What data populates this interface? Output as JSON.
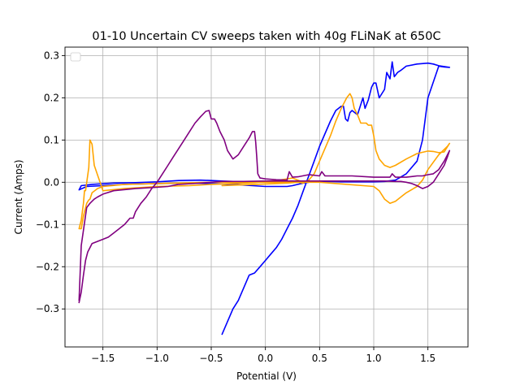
{
  "chart_data": {
    "type": "line",
    "title": "01-10 Uncertain CV sweeps taken with 40g FLiNaK at 650C",
    "xlabel": "Potential (V)",
    "ylabel": "Current (Amps)",
    "xlim": [
      -1.85,
      1.87
    ],
    "ylim": [
      -0.39,
      0.32
    ],
    "xticks": [
      -1.5,
      -1.0,
      -0.5,
      0.0,
      0.5,
      1.0,
      1.5
    ],
    "xtick_labels": [
      "−1.5",
      "−1.0",
      "−0.5",
      "0.0",
      "0.5",
      "1.0",
      "1.5"
    ],
    "yticks": [
      -0.3,
      -0.2,
      -0.1,
      0.0,
      0.1,
      0.2,
      0.3
    ],
    "ytick_labels": [
      "−0.3",
      "−0.2",
      "−0.1",
      "0.0",
      "0.1",
      "0.2",
      "0.3"
    ],
    "grid": true,
    "legend": "top-left (empty)",
    "series": [
      {
        "color": "#0000ff",
        "x": [
          -0.4,
          -0.35,
          -0.3,
          -0.25,
          -0.2,
          -0.15,
          -0.1,
          -0.05,
          0.0,
          0.05,
          0.1,
          0.15,
          0.2,
          0.25,
          0.3,
          0.35,
          0.4,
          0.45,
          0.5,
          0.55,
          0.6,
          0.65,
          0.7,
          0.72,
          0.74,
          0.76,
          0.78,
          0.8,
          0.85,
          0.9,
          0.92,
          0.95,
          0.98,
          1.0,
          1.02,
          1.05,
          1.1,
          1.12,
          1.15,
          1.17,
          1.19,
          1.22,
          1.25,
          1.3,
          1.4,
          1.5,
          1.55,
          1.6,
          1.7,
          1.65,
          1.6,
          1.5,
          1.45,
          1.4,
          1.3,
          1.2,
          1.1,
          1.0,
          0.9,
          0.8,
          0.7,
          0.6,
          0.5,
          0.45,
          0.4,
          0.3,
          0.2,
          0.1,
          0.0,
          -0.1,
          -0.2,
          -0.3,
          -0.4,
          -0.5,
          -0.6,
          -0.8,
          -1.0,
          -1.2,
          -1.4,
          -1.6,
          -1.7,
          -1.72,
          -1.65,
          -1.5,
          -1.3,
          -1.0,
          -0.7,
          -0.5,
          -0.3,
          0.0,
          0.1,
          0.2,
          0.25,
          0.3,
          0.35,
          0.4
        ],
        "y": [
          -0.36,
          -0.33,
          -0.3,
          -0.28,
          -0.25,
          -0.22,
          -0.215,
          -0.2,
          -0.185,
          -0.17,
          -0.155,
          -0.135,
          -0.11,
          -0.085,
          -0.055,
          -0.02,
          0.015,
          0.05,
          0.085,
          0.115,
          0.145,
          0.17,
          0.18,
          0.18,
          0.15,
          0.145,
          0.165,
          0.17,
          0.16,
          0.2,
          0.175,
          0.195,
          0.225,
          0.235,
          0.235,
          0.2,
          0.22,
          0.26,
          0.245,
          0.285,
          0.25,
          0.26,
          0.265,
          0.275,
          0.28,
          0.282,
          0.28,
          0.276,
          0.272,
          0.273,
          0.275,
          0.2,
          0.1,
          0.05,
          0.02,
          0.005,
          0.002,
          0.001,
          0.001,
          0.001,
          0.001,
          0.002,
          0.002,
          0.003,
          0.003,
          0.003,
          0.003,
          0.002,
          0.002,
          0.002,
          0.002,
          0.002,
          0.003,
          0.004,
          0.005,
          0.004,
          0.001,
          -0.001,
          -0.002,
          -0.005,
          -0.008,
          -0.018,
          -0.01,
          -0.008,
          -0.005,
          -0.003,
          -0.002,
          -0.003,
          -0.005,
          -0.01,
          -0.01,
          -0.01,
          -0.008,
          -0.005,
          -0.002,
          0.0
        ]
      },
      {
        "color": "#ffa500",
        "x": [
          -0.4,
          -0.2,
          0.0,
          0.2,
          0.3,
          0.35,
          0.4,
          0.45,
          0.5,
          0.55,
          0.6,
          0.65,
          0.7,
          0.75,
          0.78,
          0.8,
          0.82,
          0.85,
          0.88,
          0.9,
          0.93,
          0.95,
          0.98,
          1.0,
          1.02,
          1.05,
          1.1,
          1.15,
          1.2,
          1.3,
          1.4,
          1.5,
          1.55,
          1.6,
          1.65,
          1.7,
          1.68,
          1.6,
          1.5,
          1.45,
          1.4,
          1.3,
          1.25,
          1.2,
          1.15,
          1.1,
          1.05,
          1.0,
          0.5,
          0.0,
          -0.5,
          -1.0,
          -1.3,
          -1.5,
          -1.55,
          -1.6,
          -1.62,
          -1.63,
          -1.65,
          -1.68,
          -1.7,
          -1.72,
          -1.7,
          -1.68,
          -1.67,
          -1.66,
          -1.63,
          -1.62,
          -1.6,
          -1.58,
          -1.5,
          -1.3,
          -1.0,
          -0.7,
          -0.5,
          -0.3,
          -0.1,
          0.1,
          0.2,
          0.25,
          0.3,
          0.35
        ],
        "y": [
          -0.008,
          -0.006,
          -0.004,
          -0.002,
          0.0,
          -0.002,
          0.005,
          0.02,
          0.05,
          0.08,
          0.11,
          0.145,
          0.175,
          0.2,
          0.21,
          0.2,
          0.175,
          0.16,
          0.14,
          0.14,
          0.14,
          0.135,
          0.135,
          0.11,
          0.075,
          0.055,
          0.04,
          0.035,
          0.04,
          0.055,
          0.068,
          0.074,
          0.073,
          0.07,
          0.072,
          0.092,
          0.085,
          0.065,
          0.03,
          0.005,
          -0.01,
          -0.025,
          -0.035,
          -0.045,
          -0.05,
          -0.04,
          -0.02,
          -0.01,
          0.0,
          0.0,
          0.0,
          -0.003,
          -0.005,
          -0.01,
          -0.015,
          -0.025,
          -0.04,
          -0.042,
          -0.05,
          -0.08,
          -0.11,
          -0.11,
          -0.09,
          -0.05,
          -0.02,
          -0.02,
          0.035,
          0.1,
          0.09,
          0.04,
          -0.02,
          -0.015,
          -0.01,
          -0.008,
          -0.005,
          -0.003,
          -0.001,
          0.004,
          0.008,
          0.01,
          0.005,
          0.0
        ]
      },
      {
        "color": "#800080",
        "x": [
          -1.72,
          -1.7,
          -1.68,
          -1.66,
          -1.64,
          -1.6,
          -1.55,
          -1.5,
          -1.45,
          -1.4,
          -1.35,
          -1.3,
          -1.25,
          -1.22,
          -1.2,
          -1.15,
          -1.1,
          -1.05,
          -1.0,
          -0.95,
          -0.9,
          -0.85,
          -0.8,
          -0.75,
          -0.7,
          -0.65,
          -0.6,
          -0.55,
          -0.52,
          -0.5,
          -0.47,
          -0.45,
          -0.42,
          -0.38,
          -0.35,
          -0.3,
          -0.25,
          -0.2,
          -0.15,
          -0.12,
          -0.1,
          -0.09,
          -0.08,
          -0.07,
          -0.05,
          0.0,
          0.1,
          0.2,
          0.22,
          0.25,
          0.3,
          0.4,
          0.5,
          0.52,
          0.55,
          0.6,
          0.8,
          1.0,
          1.15,
          1.17,
          1.2,
          1.3,
          1.4,
          1.45,
          1.5,
          1.55,
          1.6,
          1.65,
          1.7,
          1.68,
          1.65,
          1.6,
          1.55,
          1.5,
          1.45,
          1.4,
          1.35,
          1.3,
          1.25,
          1.2,
          1.1,
          1.0,
          0.5,
          0.0,
          -0.2,
          -0.4,
          -0.6,
          -0.8,
          -0.9,
          -1.0,
          -1.2,
          -1.4,
          -1.5,
          -1.55,
          -1.58,
          -1.6,
          -1.62,
          -1.65,
          -1.7,
          -1.72
        ],
        "y": [
          -0.285,
          -0.26,
          -0.22,
          -0.185,
          -0.165,
          -0.145,
          -0.14,
          -0.135,
          -0.13,
          -0.12,
          -0.11,
          -0.1,
          -0.085,
          -0.085,
          -0.07,
          -0.05,
          -0.035,
          -0.015,
          0.0,
          0.02,
          0.04,
          0.06,
          0.08,
          0.1,
          0.12,
          0.14,
          0.155,
          0.168,
          0.17,
          0.15,
          0.15,
          0.14,
          0.12,
          0.1,
          0.075,
          0.055,
          0.065,
          0.085,
          0.105,
          0.12,
          0.12,
          0.095,
          0.06,
          0.02,
          0.01,
          0.008,
          0.006,
          0.005,
          0.025,
          0.012,
          0.013,
          0.018,
          0.015,
          0.025,
          0.015,
          0.015,
          0.015,
          0.012,
          0.012,
          0.02,
          0.012,
          0.012,
          0.015,
          0.015,
          0.018,
          0.02,
          0.03,
          0.05,
          0.075,
          0.06,
          0.04,
          0.02,
          0.0,
          -0.01,
          -0.015,
          -0.008,
          -0.003,
          0.0,
          0.002,
          0.002,
          0.003,
          0.003,
          0.003,
          0.003,
          0.002,
          0.002,
          -0.002,
          -0.005,
          -0.01,
          -0.012,
          -0.015,
          -0.02,
          -0.028,
          -0.035,
          -0.04,
          -0.045,
          -0.05,
          -0.06,
          -0.15,
          -0.28
        ]
      }
    ]
  }
}
